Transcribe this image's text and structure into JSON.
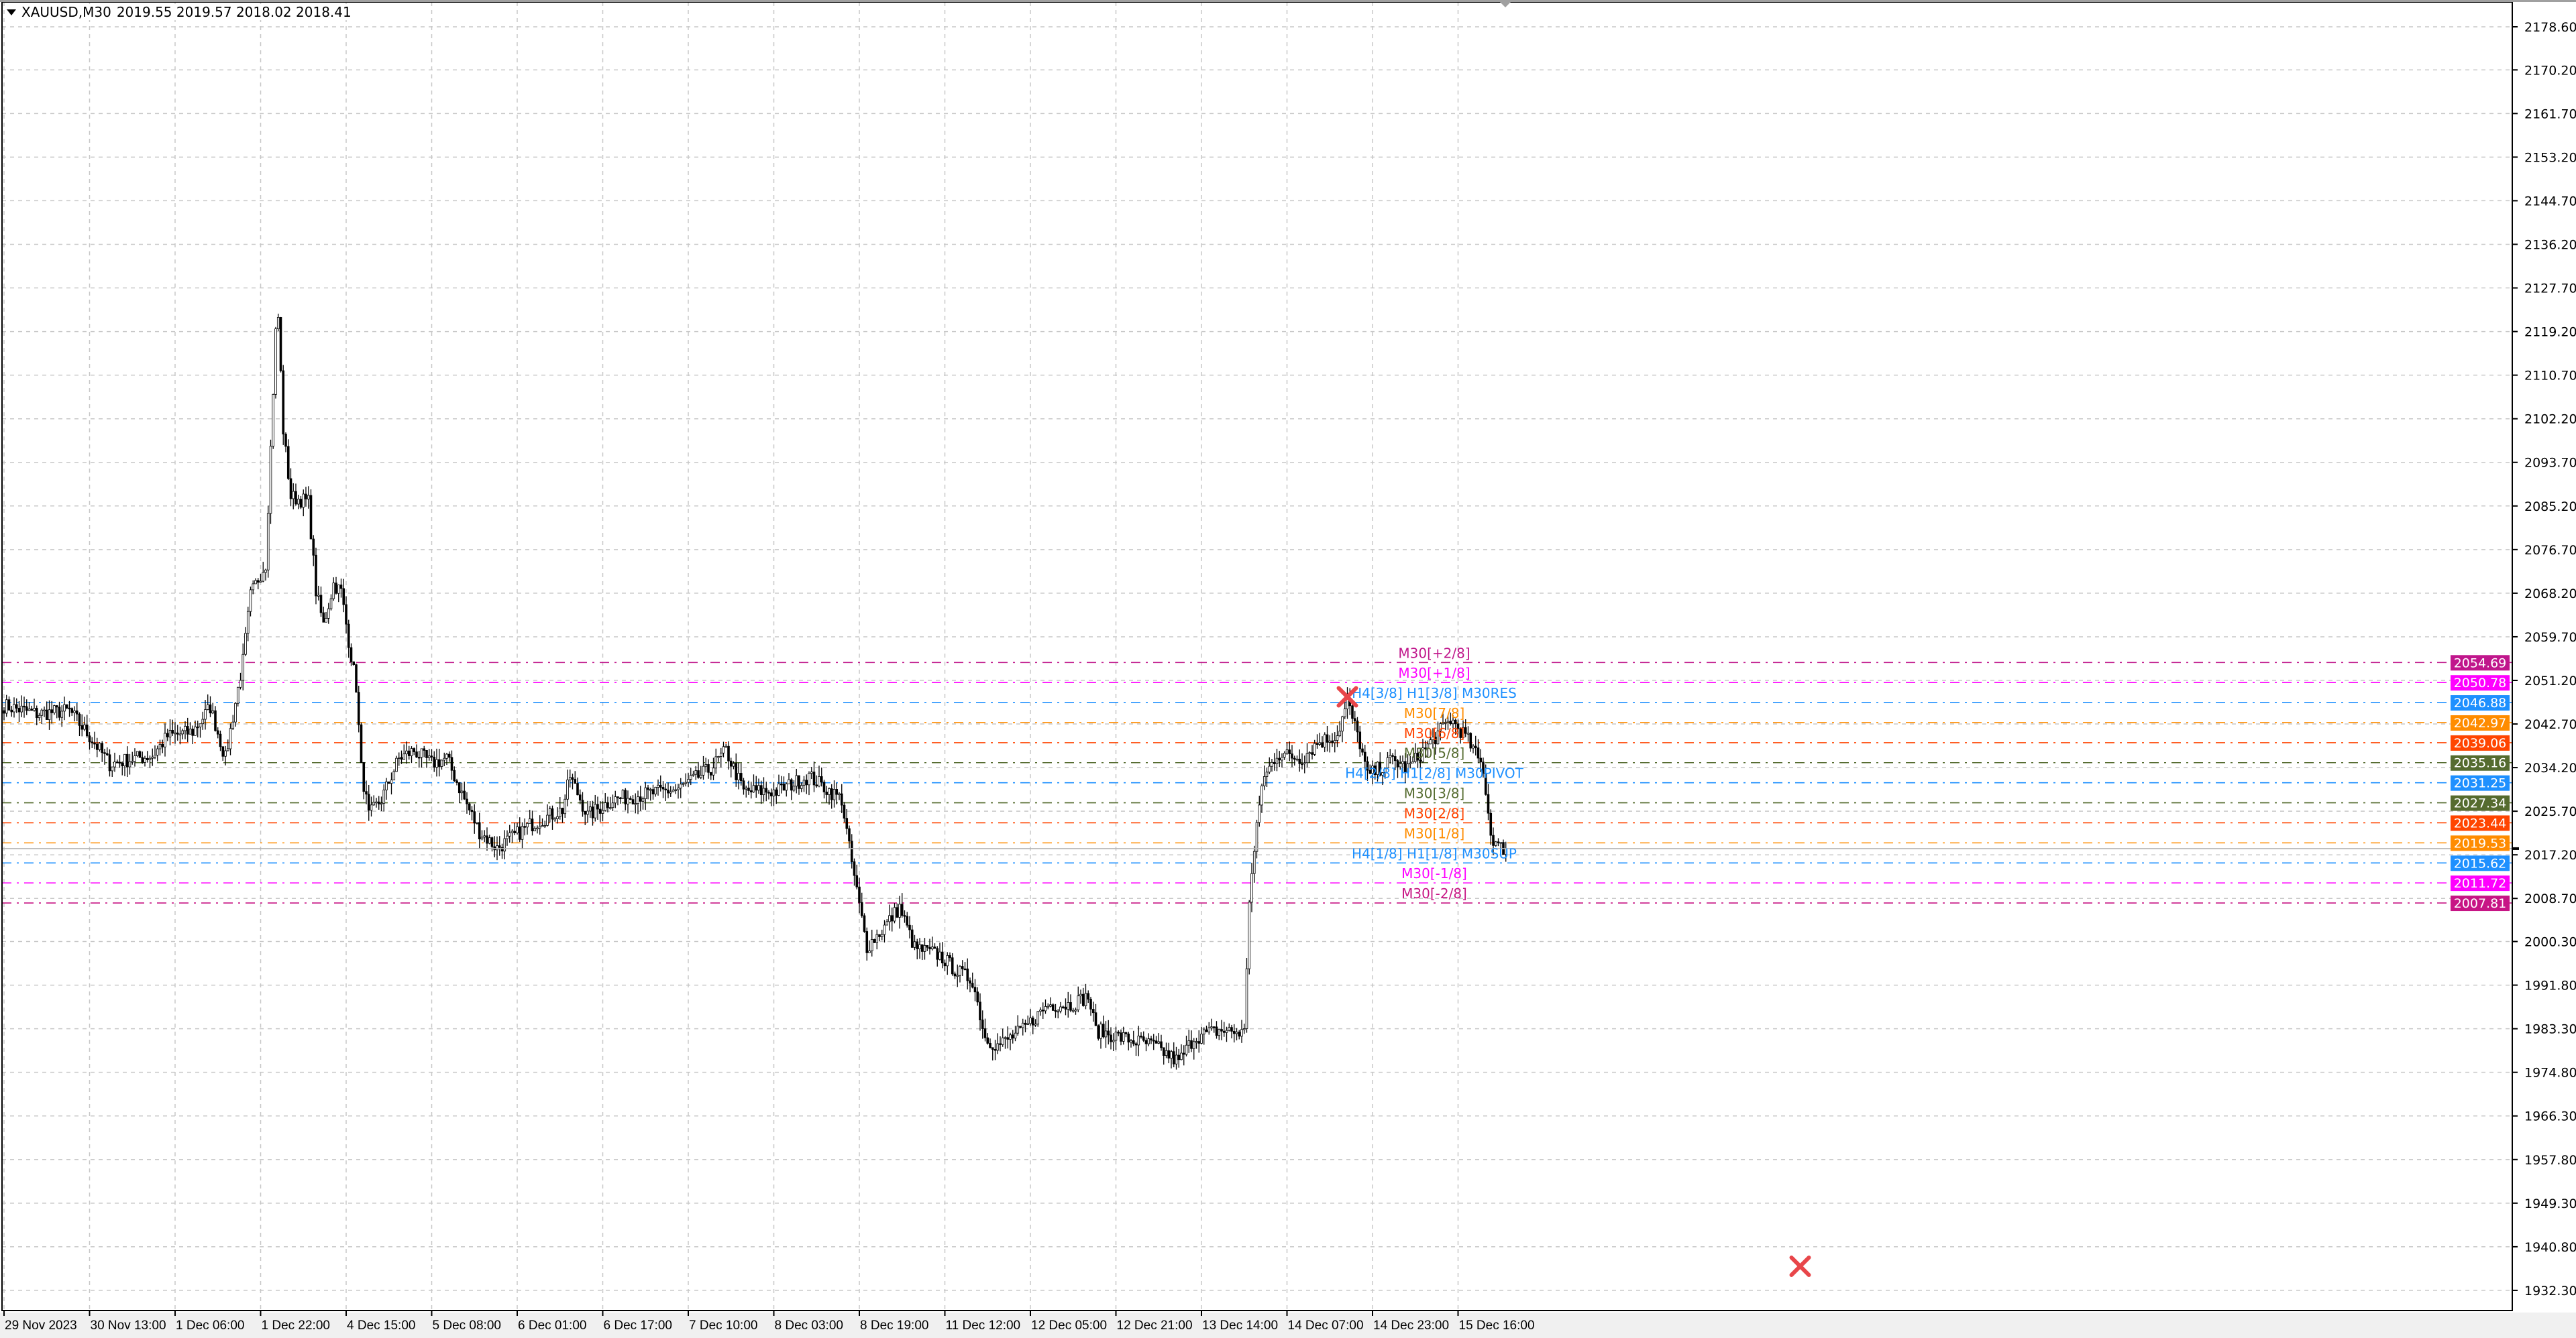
{
  "header": {
    "symbol": "XAUUSD,M30",
    "ohlc": "2019.55 2019.57 2018.02 2018.41",
    "menu_icon": "triangle-down-icon"
  },
  "chart_data": {
    "type": "candlestick",
    "symbol": "XAUUSD",
    "timeframe": "M30",
    "current_price": 2018.41,
    "ylim": [
      1929,
      2183
    ],
    "grid": true,
    "y_ticks": [
      "2178.60",
      "2170.20",
      "2161.70",
      "2153.20",
      "2144.70",
      "2136.20",
      "2127.70",
      "2119.20",
      "2110.70",
      "2102.20",
      "2093.70",
      "2085.20",
      "2076.70",
      "2068.20",
      "2059.70",
      "2051.20",
      "2042.70",
      "2034.20",
      "2025.70",
      "2017.20",
      "2008.70",
      "2000.30",
      "1991.80",
      "1983.30",
      "1974.80",
      "1966.30",
      "1957.80",
      "1949.30",
      "1940.80",
      "1932.30"
    ],
    "x_ticks": [
      "29 Nov 2023",
      "30 Nov 13:00",
      "1 Dec 06:00",
      "1 Dec 22:00",
      "4 Dec 15:00",
      "5 Dec 08:00",
      "6 Dec 01:00",
      "6 Dec 17:00",
      "7 Dec 10:00",
      "8 Dec 03:00",
      "8 Dec 19:00",
      "11 Dec 12:00",
      "12 Dec 05:00",
      "12 Dec 21:00",
      "13 Dec 14:00",
      "14 Dec 07:00",
      "14 Dec 23:00",
      "15 Dec 16:00"
    ],
    "bars_per_x_tick": 34,
    "close_path_bar_price": [
      [
        0,
        2046.3
      ],
      [
        13,
        2044.7
      ],
      [
        26,
        2045.3
      ],
      [
        36,
        2039
      ],
      [
        42,
        2034.9
      ],
      [
        52,
        2036
      ],
      [
        59,
        2036.5
      ],
      [
        65,
        2040.3
      ],
      [
        75,
        2041.2
      ],
      [
        82,
        2046
      ],
      [
        88,
        2036
      ],
      [
        95,
        2055
      ],
      [
        98,
        2067.7
      ],
      [
        101,
        2071
      ],
      [
        104,
        2074
      ],
      [
        108,
        2119
      ],
      [
        109,
        2122
      ],
      [
        111,
        2100
      ],
      [
        114,
        2087
      ],
      [
        121,
        2086
      ],
      [
        124,
        2068.6
      ],
      [
        127,
        2062
      ],
      [
        131,
        2070
      ],
      [
        134,
        2068.5
      ],
      [
        137,
        2059
      ],
      [
        140,
        2050
      ],
      [
        142,
        2034
      ],
      [
        145,
        2024.8
      ],
      [
        150,
        2028
      ],
      [
        157,
        2036
      ],
      [
        163,
        2037.5
      ],
      [
        170,
        2035
      ],
      [
        176,
        2036
      ],
      [
        183,
        2028
      ],
      [
        189,
        2021.7
      ],
      [
        196,
        2018.5
      ],
      [
        209,
        2023
      ],
      [
        222,
        2026
      ],
      [
        225,
        2032.5
      ],
      [
        232,
        2024.8
      ],
      [
        242,
        2028
      ],
      [
        255,
        2029
      ],
      [
        268,
        2030
      ],
      [
        281,
        2034
      ],
      [
        287,
        2037.5
      ],
      [
        294,
        2029.6
      ],
      [
        307,
        2029.6
      ],
      [
        320,
        2032.5
      ],
      [
        333,
        2028
      ],
      [
        336,
        2018.5
      ],
      [
        340,
        2007.3
      ],
      [
        343,
        1999.3
      ],
      [
        349,
        2002.5
      ],
      [
        356,
        2007
      ],
      [
        362,
        1999
      ],
      [
        372,
        1997.6
      ],
      [
        379,
        1994.4
      ],
      [
        385,
        1992.8
      ],
      [
        390,
        1981.6
      ],
      [
        395,
        1980
      ],
      [
        405,
        1983
      ],
      [
        415,
        1988
      ],
      [
        424,
        1988
      ],
      [
        431,
        1989.6
      ],
      [
        434,
        1983
      ],
      [
        444,
        1981.6
      ],
      [
        457,
        1980
      ],
      [
        467,
        1976.8
      ],
      [
        473,
        1981.6
      ],
      [
        483,
        1983
      ],
      [
        493,
        1982.5
      ],
      [
        495,
        2008.7
      ],
      [
        500,
        2031.2
      ],
      [
        506,
        2036.9
      ],
      [
        516,
        2036
      ],
      [
        522,
        2039
      ],
      [
        530,
        2040.6
      ],
      [
        534,
        2047
      ],
      [
        539,
        2039
      ],
      [
        542,
        2032.5
      ],
      [
        552,
        2035.7
      ],
      [
        558,
        2034
      ],
      [
        565,
        2037.9
      ],
      [
        575,
        2043.6
      ],
      [
        581,
        2040.4
      ],
      [
        588,
        2034
      ],
      [
        591,
        2021.2
      ],
      [
        594,
        2018.7
      ],
      [
        597,
        2018.41
      ]
    ],
    "levels": [
      {
        "label": "M30[+2/8]",
        "price": "2054.69",
        "color": "#c0168c"
      },
      {
        "label": "M30[+1/8]",
        "price": "2050.78",
        "color": "#ff00ff"
      },
      {
        "label": "H4[3/8] H1[3/8] M30RES",
        "price": "2046.88",
        "color": "#1e90ff"
      },
      {
        "label": "M30[7/8]",
        "price": "2042.97",
        "color": "#ff8c00"
      },
      {
        "label": "M30[6/8]",
        "price": "2039.06",
        "color": "#ff4500"
      },
      {
        "label": "M30[5/8]",
        "price": "2035.16",
        "color": "#556b2f"
      },
      {
        "label": "H4[2/8] H1[2/8] M30PIVOT",
        "price": "2031.25",
        "color": "#1e90ff"
      },
      {
        "label": "M30[3/8]",
        "price": "2027.34",
        "color": "#556b2f"
      },
      {
        "label": "M30[2/8]",
        "price": "2023.44",
        "color": "#ff4500"
      },
      {
        "label": "M30[1/8]",
        "price": "2019.53",
        "color": "#ff8c00"
      },
      {
        "label": "H4[1/8] H1[1/8] M30SUP",
        "price": "2015.62",
        "color": "#1e90ff"
      },
      {
        "label": "M30[-1/8]",
        "price": "2011.72",
        "color": "#ff00ff"
      },
      {
        "label": "M30[-2/8]",
        "price": "2007.81",
        "color": "#c71585"
      }
    ],
    "markers": [
      {
        "icon": "red-x-icon",
        "bar": 534,
        "price": 2048
      },
      {
        "icon": "red-x-icon",
        "bar": 714,
        "price": 1937
      }
    ]
  }
}
